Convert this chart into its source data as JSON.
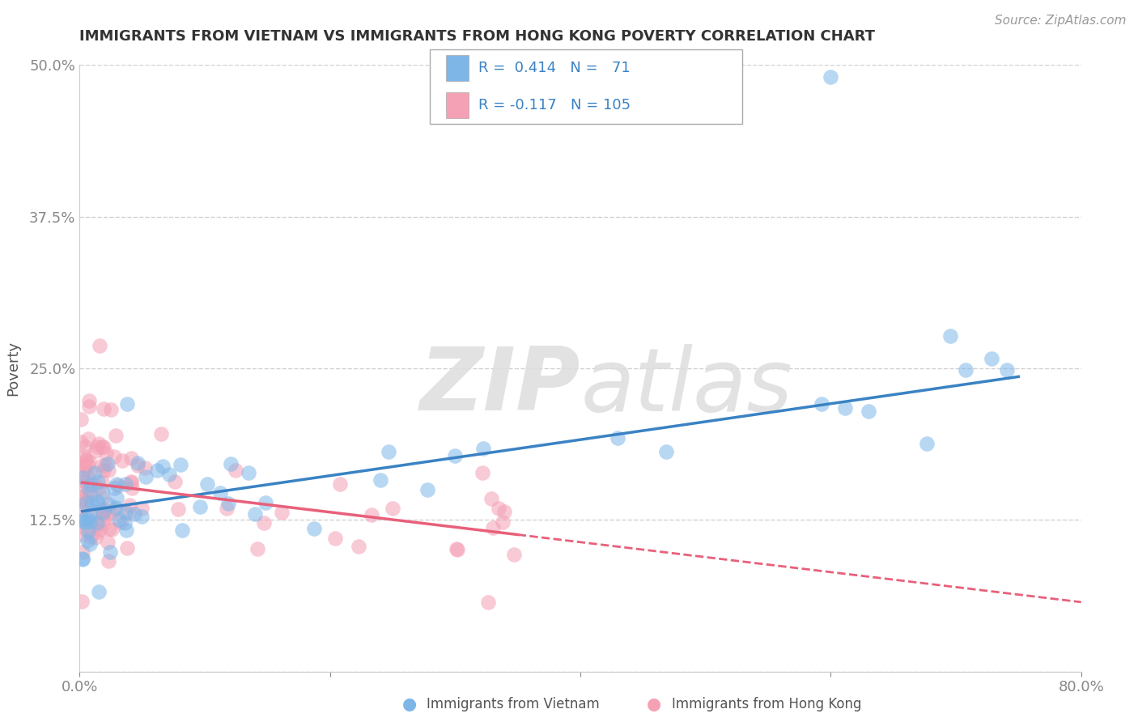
{
  "title": "IMMIGRANTS FROM VIETNAM VS IMMIGRANTS FROM HONG KONG POVERTY CORRELATION CHART",
  "source": "Source: ZipAtlas.com",
  "ylabel": "Poverty",
  "xlim": [
    0.0,
    0.8
  ],
  "ylim": [
    0.0,
    0.5
  ],
  "vietnam_color": "#7EB6E8",
  "hongkong_color": "#F4A0B5",
  "vietnam_R": 0.414,
  "vietnam_N": 71,
  "hongkong_R": -0.117,
  "hongkong_N": 105,
  "line_vietnam_color": "#3A82C4",
  "line_hongkong_color": "#E8607A",
  "legend_label_vietnam": "Immigrants from Vietnam",
  "legend_label_hongkong": "Immigrants from Hong Kong",
  "background_color": "#ffffff",
  "grid_color": "#cccccc",
  "title_color": "#333333",
  "axis_label_color": "#888888",
  "ytick_color": "#5599DD",
  "watermark_color": "#DDDDDD"
}
